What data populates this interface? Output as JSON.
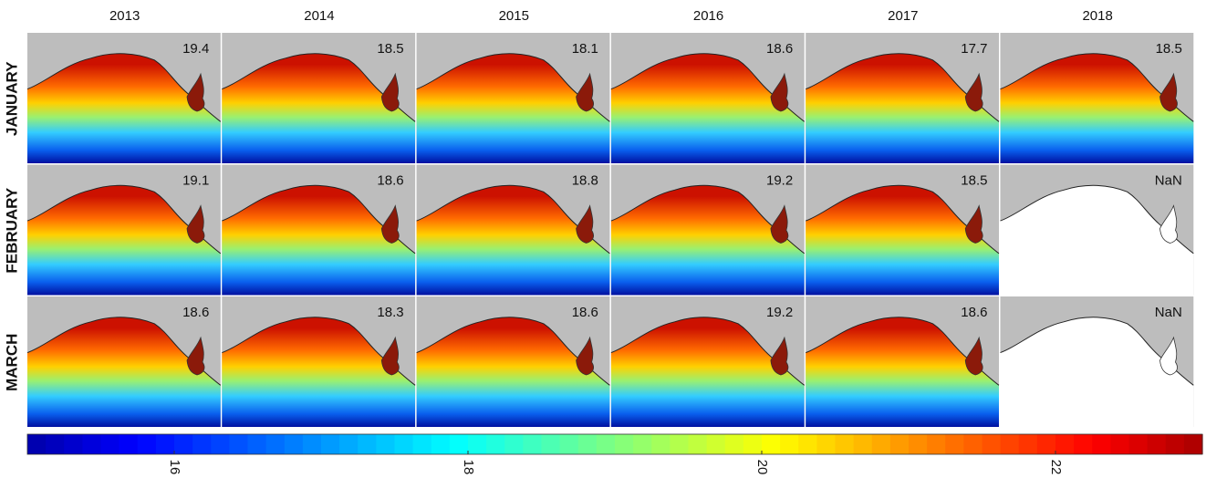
{
  "column_labels": [
    "2013",
    "2014",
    "2015",
    "2016",
    "2017",
    "2018"
  ],
  "row_labels": [
    "JANUARY",
    "FEBRUARY",
    "MARCH"
  ],
  "panels": [
    [
      "19.4",
      "18.5",
      "18.1",
      "18.6",
      "17.7",
      "18.5"
    ],
    [
      "19.1",
      "18.6",
      "18.8",
      "19.2",
      "18.5",
      "NaN"
    ],
    [
      "18.6",
      "18.3",
      "18.6",
      "19.2",
      "18.6",
      "NaN"
    ]
  ],
  "colorbar": {
    "lim": [
      15,
      23
    ],
    "ticks": [
      16,
      18,
      20,
      22
    ]
  }
}
